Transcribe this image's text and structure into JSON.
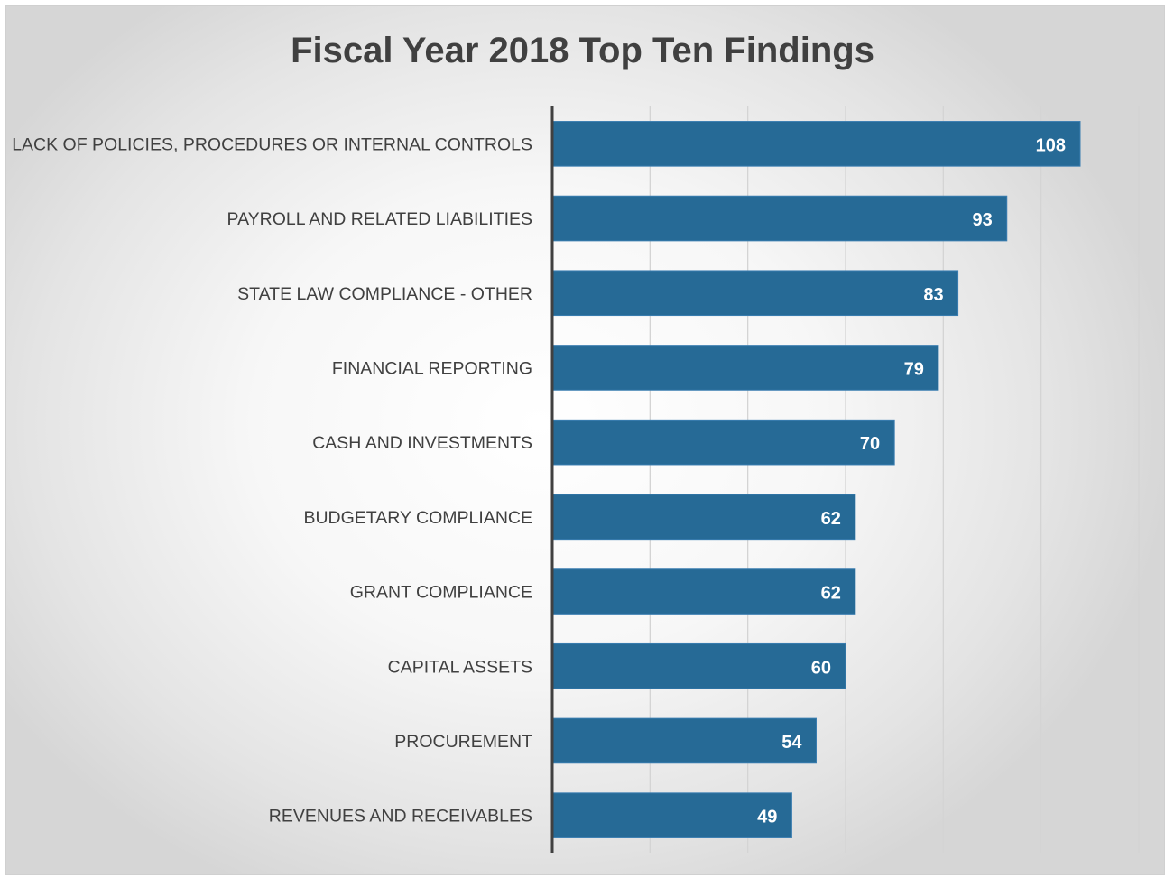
{
  "chart_data": {
    "type": "bar",
    "orientation": "horizontal",
    "title": "Fiscal Year 2018 Top Ten Findings",
    "categories": [
      "LACK OF POLICIES, PROCEDURES OR INTERNAL CONTROLS",
      "PAYROLL AND RELATED LIABILITIES",
      "STATE LAW COMPLIANCE - OTHER",
      "FINANCIAL REPORTING",
      "CASH AND INVESTMENTS",
      "BUDGETARY COMPLIANCE",
      "GRANT COMPLIANCE",
      "CAPITAL ASSETS",
      "PROCUREMENT",
      "REVENUES AND RECEIVABLES"
    ],
    "values": [
      108,
      93,
      83,
      79,
      70,
      62,
      62,
      60,
      54,
      49
    ],
    "xlim": [
      0,
      120
    ],
    "x_gridline_step": 20,
    "grid": "vertical",
    "data_labels": true,
    "legend": "none",
    "colors": {
      "bar": "#266a96",
      "data_label": "#ffffff",
      "gridline": "#d4d4d4",
      "axis": "#404040",
      "category_label": "#404040",
      "title": "#404040"
    }
  }
}
